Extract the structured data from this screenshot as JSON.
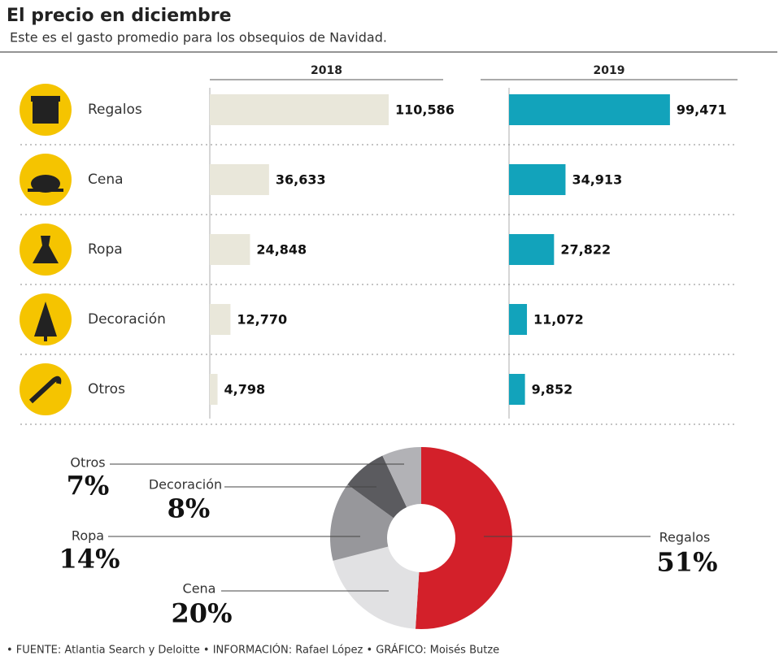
{
  "title": "El precio en diciembre",
  "subtitle": "Este es el gasto promedio para los obsequios de Navidad.",
  "source": "• FUENTE: Atlantia Search y Deloitte  • INFORMACIÓN: Rafael López  • GRÁFICO: Moisés Butze",
  "chart_data": [
    {
      "type": "bar",
      "orientation": "horizontal",
      "title": "2018",
      "categories": [
        "Regalos",
        "Cena",
        "Ropa",
        "Decoración",
        "Otros"
      ],
      "values": [
        110586,
        36633,
        24848,
        12770,
        4798
      ],
      "value_labels": [
        "110,586",
        "36,633",
        "24,848",
        "12,770",
        "4,798"
      ],
      "color": "#e9e7da"
    },
    {
      "type": "bar",
      "orientation": "horizontal",
      "title": "2019",
      "values": [
        99471,
        34913,
        27822,
        11072,
        9852
      ],
      "value_labels": [
        "99,471",
        "34,913",
        "27,822",
        "11,072",
        "9,852"
      ],
      "color": "#12a3bb"
    },
    {
      "type": "pie",
      "donut": true,
      "categories": [
        "Regalos",
        "Cena",
        "Ropa",
        "Decoración",
        "Otros"
      ],
      "values": [
        51,
        20,
        14,
        8,
        7
      ],
      "value_labels": [
        "51%",
        "20%",
        "14%",
        "8%",
        "7%"
      ],
      "colors": [
        "#d3202a",
        "#e1e1e3",
        "#97979b",
        "#5b5b5f",
        "#b2b2b6"
      ]
    }
  ]
}
